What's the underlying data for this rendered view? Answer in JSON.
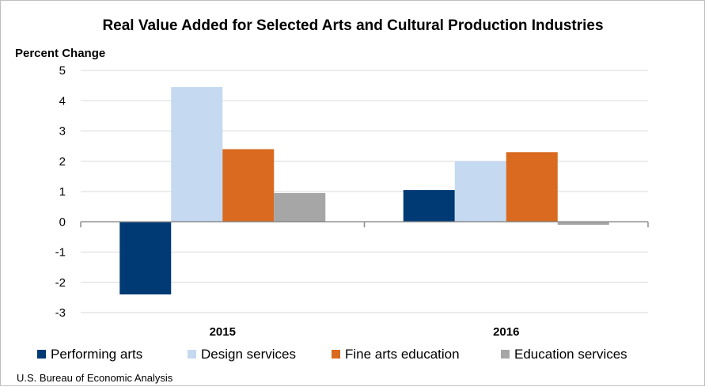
{
  "chart_data": {
    "type": "bar",
    "title": "Real Value Added for Selected Arts and Cultural Production Industries",
    "ylabel": "Percent Change",
    "xlabel": "",
    "categories": [
      "2015",
      "2016"
    ],
    "series": [
      {
        "name": "Performing arts",
        "color": "#003a75",
        "values": [
          -2.4,
          1.05
        ]
      },
      {
        "name": "Design services",
        "color": "#c5d9f1",
        "values": [
          4.45,
          2.0
        ]
      },
      {
        "name": "Fine arts education",
        "color": "#d96a1f",
        "values": [
          2.4,
          2.3
        ]
      },
      {
        "name": "Education  services",
        "color": "#a6a6a6",
        "values": [
          0.95,
          -0.1
        ]
      }
    ],
    "ylim": [
      -3,
      5
    ],
    "yticks": [
      5,
      4,
      3,
      2,
      1,
      0,
      -1,
      -2,
      -3
    ],
    "grid": true,
    "legend_position": "bottom"
  },
  "source": "U.S. Bureau of Economic Analysis"
}
